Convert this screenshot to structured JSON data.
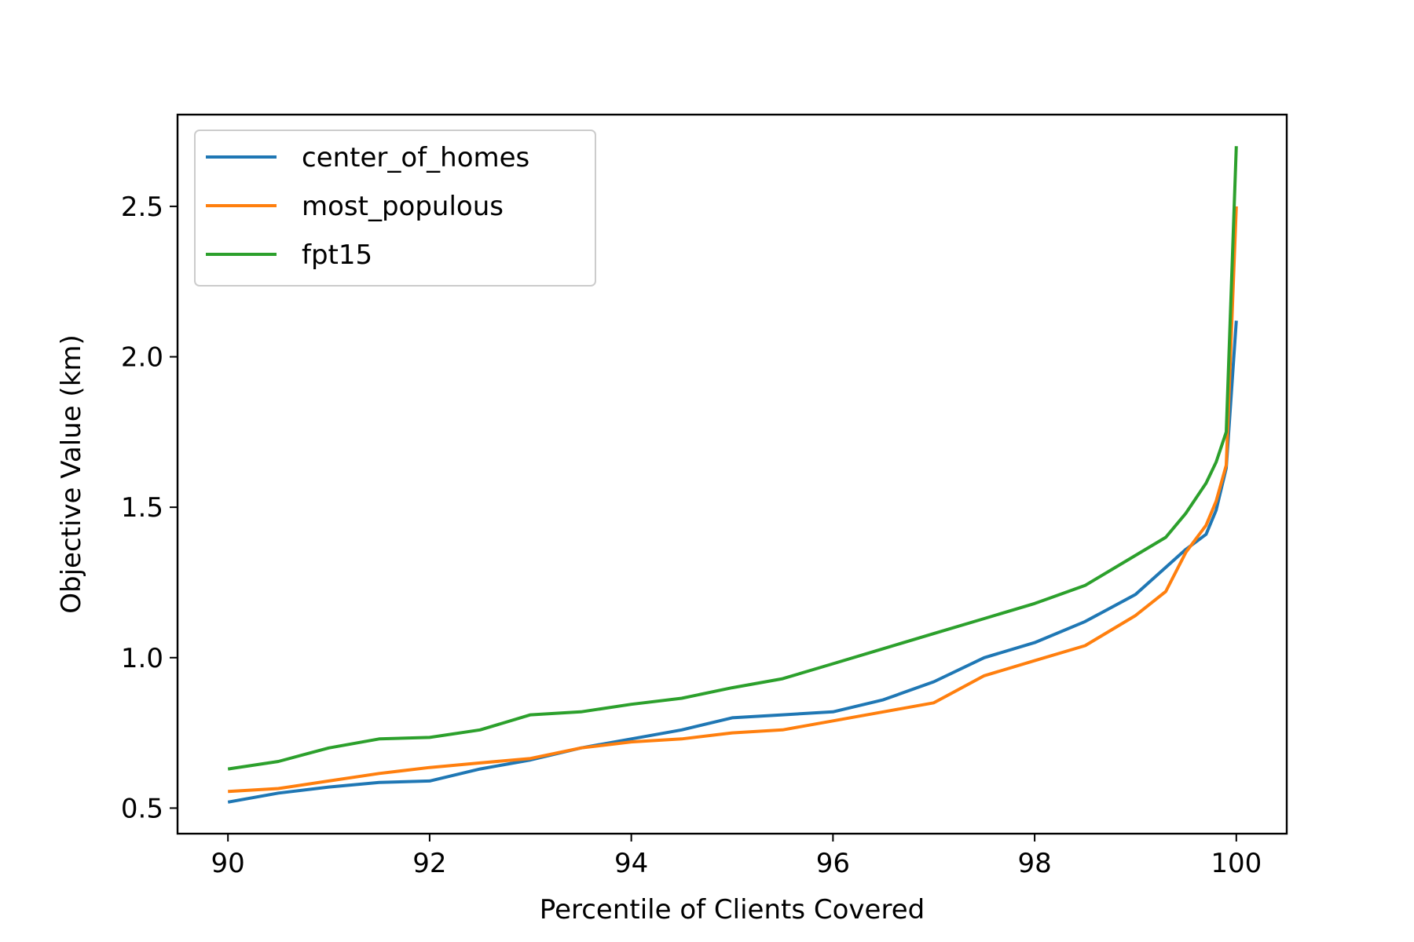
{
  "chart_data": {
    "type": "line",
    "title": "",
    "xlabel": "Percentile of Clients Covered",
    "ylabel": "Objective Value (km)",
    "xlim": [
      89.5,
      100.5
    ],
    "ylim": [
      0.415,
      2.805
    ],
    "xticks": [
      90,
      92,
      94,
      96,
      98,
      100
    ],
    "xtick_labels": [
      "90",
      "92",
      "94",
      "96",
      "98",
      "100"
    ],
    "yticks": [
      0.5,
      1.0,
      1.5,
      2.0,
      2.5
    ],
    "ytick_labels": [
      "0.5",
      "1.0",
      "1.5",
      "2.0",
      "2.5"
    ],
    "grid": false,
    "legend_position": "upper-left",
    "x": [
      90,
      90.5,
      91,
      91.5,
      92,
      92.5,
      93,
      93.5,
      94,
      94.5,
      95,
      95.5,
      96,
      96.5,
      97,
      97.5,
      98,
      98.5,
      99,
      99.3,
      99.5,
      99.7,
      99.8,
      99.9,
      100
    ],
    "series": [
      {
        "name": "center_of_homes",
        "color": "#1f77b4",
        "values": [
          0.52,
          0.55,
          0.57,
          0.585,
          0.59,
          0.63,
          0.66,
          0.7,
          0.73,
          0.76,
          0.8,
          0.81,
          0.82,
          0.86,
          0.92,
          1.0,
          1.05,
          1.12,
          1.21,
          1.3,
          1.36,
          1.41,
          1.49,
          1.63,
          2.12
        ]
      },
      {
        "name": "most_populous",
        "color": "#ff7f0e",
        "values": [
          0.555,
          0.565,
          0.59,
          0.615,
          0.635,
          0.65,
          0.665,
          0.7,
          0.72,
          0.73,
          0.75,
          0.76,
          0.79,
          0.82,
          0.85,
          0.94,
          0.99,
          1.04,
          1.14,
          1.22,
          1.35,
          1.44,
          1.52,
          1.64,
          2.5
        ]
      },
      {
        "name": "fpt15",
        "color": "#2ca02c",
        "values": [
          0.63,
          0.655,
          0.7,
          0.73,
          0.735,
          0.76,
          0.81,
          0.82,
          0.845,
          0.865,
          0.9,
          0.93,
          0.98,
          1.03,
          1.08,
          1.13,
          1.18,
          1.24,
          1.34,
          1.4,
          1.48,
          1.58,
          1.65,
          1.75,
          2.7
        ]
      }
    ]
  }
}
